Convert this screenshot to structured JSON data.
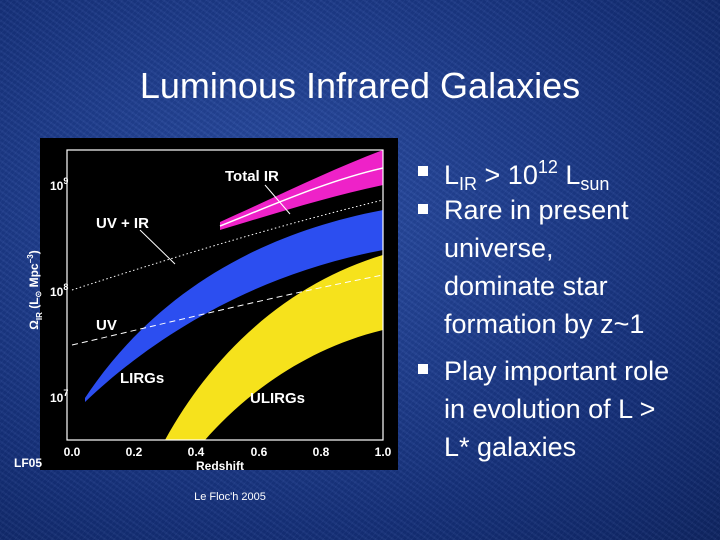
{
  "title": "Luminous Infrared Galaxies",
  "figure": {
    "labels": {
      "total_ir": "Total IR",
      "uv_ir": "UV + IR",
      "uv": "UV",
      "lirgs": "LIRGs",
      "ulirgs": "ULIRGs"
    },
    "x_label": "Redshift",
    "y_label": {
      "sym": "Ω",
      "sub": "IR",
      "open": " (L",
      "sun": "⊙",
      "unit": " Mpc",
      "exp": "−3",
      "close": ")"
    },
    "x_ticks": [
      "0.0",
      "0.2",
      "0.4",
      "0.6",
      "0.8",
      "1.0"
    ],
    "y_ticks": [
      {
        "base": "10",
        "exp": "9"
      },
      {
        "base": "10",
        "exp": "8"
      },
      {
        "base": "10",
        "exp": "7"
      }
    ],
    "tag": "LF05"
  },
  "credit": "Le Floc'h 2005",
  "bullets": [
    {
      "parts": [
        "L",
        "IR",
        " > 10",
        "12",
        " L",
        "sun"
      ]
    },
    {
      "lines": [
        "Rare in present",
        "universe,",
        "dominate star",
        "formation by z~1"
      ]
    },
    {
      "lines": [
        "Play important role",
        "in evolution of L >",
        "L* galaxies"
      ]
    }
  ]
}
